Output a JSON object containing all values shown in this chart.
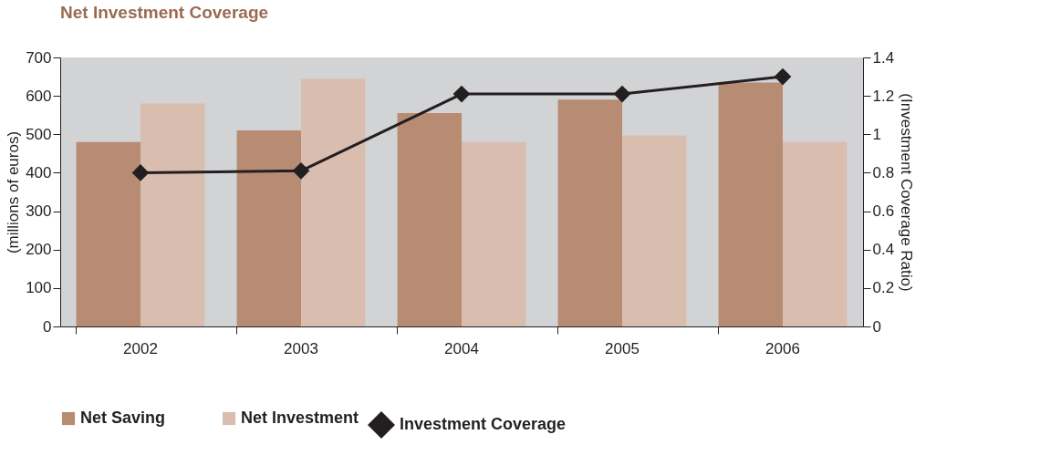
{
  "chart_data": {
    "type": "bar",
    "title": "Net Investment Coverage",
    "categories": [
      "2002",
      "2003",
      "2004",
      "2005",
      "2006"
    ],
    "ylabel": "(millions of euros)",
    "y2label": "(Investment Coverage Ratio)",
    "ylim": [
      0,
      700
    ],
    "yticks": [
      0,
      100,
      200,
      300,
      400,
      500,
      600,
      700
    ],
    "y2lim": [
      0,
      1.4
    ],
    "y2ticks": [
      0,
      {
        "value": 0.2,
        "label": "0.2"
      },
      {
        "value": 0.4,
        "label": "0.4"
      },
      {
        "value": 0.6,
        "label": "0.6"
      },
      {
        "value": 0.8,
        "label": "0.8"
      },
      1,
      {
        "value": 1.2,
        "label": "1.2"
      },
      {
        "value": 1.4,
        "label": "1.4"
      }
    ],
    "grid": false,
    "legend": "bottom",
    "series": [
      {
        "name": "Net Saving",
        "color": "#b88b73",
        "values": [
          480,
          510,
          555,
          590,
          635
        ]
      },
      {
        "name": "Net Investment",
        "color": "#d9bdae",
        "values": [
          580,
          645,
          480,
          497,
          480
        ]
      },
      {
        "name": "Investment Coverage",
        "type": "line",
        "axis": "y2",
        "color": "#231f20",
        "marker": "diamond",
        "line_style": "solid",
        "values": [
          0.8,
          0.81,
          1.21,
          1.21,
          1.3
        ]
      }
    ]
  }
}
